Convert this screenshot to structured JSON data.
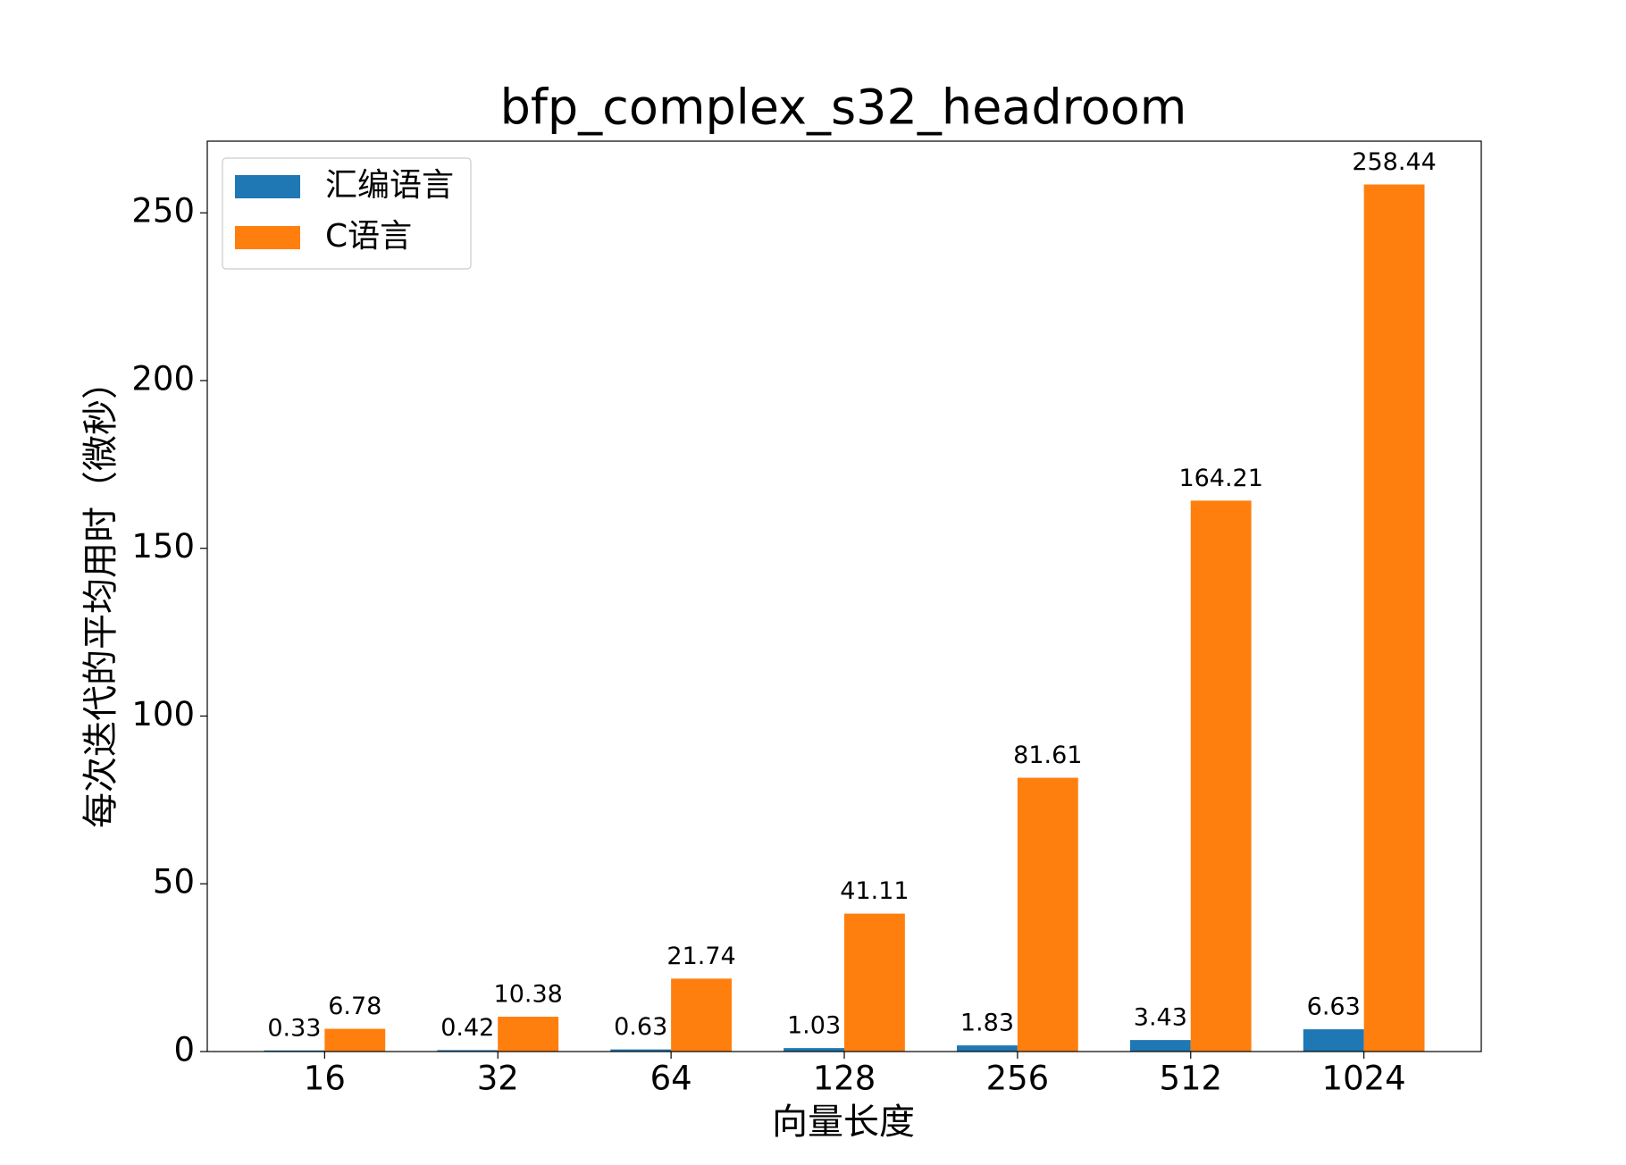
{
  "chart_data": {
    "type": "bar",
    "title": "bfp_complex_s32_headroom",
    "x_label": "向量长度",
    "y_label": "每次迭代的平均用时（微秒）",
    "categories": [
      "16",
      "32",
      "64",
      "128",
      "256",
      "512",
      "1024"
    ],
    "series": [
      {
        "name": "汇编语言",
        "color": "#1f77b4",
        "values": [
          0.33,
          0.42,
          0.63,
          1.03,
          1.83,
          3.43,
          6.63
        ]
      },
      {
        "name": "C语言",
        "color": "#ff7f0e",
        "values": [
          6.78,
          10.38,
          21.74,
          41.11,
          81.61,
          164.21,
          258.44
        ]
      }
    ],
    "ylim": [
      0,
      271.36
    ],
    "yticks": [
      0,
      50,
      100,
      150,
      200,
      250
    ],
    "legend": "upper left",
    "grid": false
  }
}
